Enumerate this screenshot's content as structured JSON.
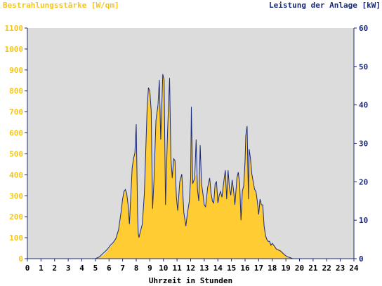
{
  "colors": {
    "irradiance": "#f5c518",
    "irradiance_fill": "#ffcc33",
    "power": "#1a2a7a",
    "plot_bg": "#dcdcdc",
    "axis": "#1a2a7a"
  },
  "chart_data": {
    "type": "area",
    "title_left": "Bestrahlungsstärke [W/qm]",
    "title_right": "Leistung der Anlage [kW]",
    "xlabel": "Uhrzeit in Stunden",
    "xlim": [
      0,
      24
    ],
    "ylim_left": [
      0,
      1100
    ],
    "ylim_right": [
      0,
      60
    ],
    "x_ticks": [
      "0",
      "1",
      "2",
      "3",
      "4",
      "5",
      "6",
      "7",
      "8",
      "9",
      "10",
      "11",
      "12",
      "13",
      "14",
      "15",
      "16",
      "17",
      "18",
      "19",
      "20",
      "21",
      "22",
      "23",
      "24"
    ],
    "y_left_ticks": [
      "0",
      "100",
      "200",
      "300",
      "400",
      "500",
      "600",
      "700",
      "800",
      "900",
      "1000",
      "1100"
    ],
    "y_right_ticks": [
      "0",
      "10",
      "20",
      "30",
      "40",
      "50",
      "60"
    ],
    "grid": false,
    "series": [
      {
        "name": "Bestrahlungsstärke [W/qm]",
        "axis": "left",
        "style": "filled-area",
        "x": [
          0,
          5,
          5.3,
          5.6,
          5.9,
          6.1,
          6.3,
          6.5,
          6.7,
          6.9,
          7.0,
          7.1,
          7.2,
          7.3,
          7.4,
          7.5,
          7.6,
          7.7,
          7.8,
          7.9,
          8.0,
          8.1,
          8.15,
          8.2,
          8.3,
          8.45,
          8.6,
          8.8,
          8.9,
          9.0,
          9.1,
          9.2,
          9.3,
          9.45,
          9.6,
          9.7,
          9.8,
          9.95,
          10.05,
          10.15,
          10.3,
          10.45,
          10.55,
          10.65,
          10.75,
          10.85,
          10.95,
          11.05,
          11.2,
          11.35,
          11.5,
          11.65,
          11.75,
          11.9,
          12.0,
          12.05,
          12.15,
          12.3,
          12.4,
          12.5,
          12.6,
          12.7,
          12.8,
          12.9,
          13.0,
          13.1,
          13.25,
          13.4,
          13.5,
          13.6,
          13.7,
          13.8,
          13.9,
          14.0,
          14.1,
          14.2,
          14.3,
          14.45,
          14.55,
          14.65,
          14.75,
          14.85,
          14.95,
          15.05,
          15.15,
          15.25,
          15.4,
          15.5,
          15.6,
          15.7,
          15.8,
          15.9,
          16.0,
          16.05,
          16.15,
          16.25,
          16.3,
          16.4,
          16.5,
          16.6,
          16.7,
          16.8,
          16.9,
          17.0,
          17.1,
          17.2,
          17.3,
          17.4,
          17.5,
          17.6,
          17.7,
          17.8,
          17.9,
          18.0,
          18.1,
          18.3,
          18.6,
          18.9,
          19.1,
          19.3,
          19.5,
          19.7,
          19.9,
          20.0,
          24
        ],
        "values": [
          0,
          0,
          5,
          15,
          35,
          55,
          70,
          90,
          130,
          230,
          290,
          310,
          330,
          310,
          260,
          150,
          300,
          430,
          470,
          500,
          640,
          200,
          110,
          95,
          120,
          150,
          300,
          720,
          810,
          800,
          700,
          220,
          360,
          660,
          720,
          730,
          560,
          880,
          850,
          250,
          600,
          860,
          470,
          380,
          470,
          460,
          290,
          220,
          360,
          400,
          210,
          150,
          200,
          270,
          380,
          700,
          350,
          380,
          400,
          320,
          270,
          540,
          350,
          310,
          250,
          240,
          340,
          380,
          310,
          270,
          260,
          350,
          370,
          260,
          300,
          320,
          290,
          370,
          420,
          280,
          420,
          340,
          300,
          370,
          330,
          250,
          380,
          410,
          350,
          180,
          320,
          350,
          470,
          580,
          600,
          280,
          520,
          470,
          400,
          360,
          330,
          320,
          270,
          210,
          280,
          250,
          250,
          150,
          110,
          90,
          80,
          80,
          60,
          70,
          65,
          45,
          40,
          20,
          10,
          5,
          0,
          0,
          0,
          0,
          0
        ]
      },
      {
        "name": "Leistung der Anlage [kW]",
        "axis": "right",
        "style": "line",
        "x": [
          0,
          5,
          5.3,
          5.6,
          5.9,
          6.1,
          6.3,
          6.5,
          6.7,
          6.9,
          7.0,
          7.1,
          7.2,
          7.3,
          7.4,
          7.5,
          7.6,
          7.7,
          7.8,
          7.9,
          8.0,
          8.1,
          8.15,
          8.2,
          8.3,
          8.45,
          8.6,
          8.8,
          8.9,
          9.0,
          9.1,
          9.2,
          9.3,
          9.45,
          9.6,
          9.7,
          9.8,
          9.95,
          10.05,
          10.15,
          10.3,
          10.45,
          10.55,
          10.65,
          10.75,
          10.85,
          10.95,
          11.05,
          11.2,
          11.35,
          11.5,
          11.65,
          11.75,
          11.9,
          12.0,
          12.05,
          12.15,
          12.3,
          12.4,
          12.5,
          12.6,
          12.7,
          12.8,
          12.9,
          13.0,
          13.1,
          13.25,
          13.4,
          13.5,
          13.6,
          13.7,
          13.8,
          13.9,
          14.0,
          14.1,
          14.2,
          14.3,
          14.45,
          14.55,
          14.65,
          14.75,
          14.85,
          14.95,
          15.05,
          15.15,
          15.25,
          15.4,
          15.5,
          15.6,
          15.7,
          15.8,
          15.9,
          16.0,
          16.05,
          16.15,
          16.25,
          16.3,
          16.4,
          16.5,
          16.6,
          16.7,
          16.8,
          16.9,
          17.0,
          17.1,
          17.2,
          17.3,
          17.4,
          17.5,
          17.6,
          17.7,
          17.8,
          17.9,
          18.0,
          18.1,
          18.3,
          18.6,
          18.9,
          19.1,
          19.3,
          19.5,
          19.7,
          19.9,
          20.0,
          24
        ],
        "values": [
          0,
          0,
          0.5,
          1.5,
          2.5,
          3.5,
          4.2,
          5.2,
          7.5,
          12.5,
          15.5,
          17.5,
          18,
          17,
          14,
          9,
          16.5,
          23.5,
          26,
          27.5,
          35,
          12,
          6.5,
          5.5,
          7,
          9,
          17,
          39,
          44.5,
          43.5,
          38.5,
          13,
          20,
          36,
          40,
          46.5,
          31,
          48,
          46.5,
          14,
          33,
          47,
          26,
          21,
          26,
          25.5,
          16,
          12.5,
          20,
          22,
          12,
          8.5,
          11.5,
          15,
          21,
          39.5,
          19.5,
          21,
          31,
          18,
          15,
          29.5,
          19.5,
          17,
          14,
          13.5,
          18.5,
          21,
          17,
          15,
          14.5,
          19.5,
          20,
          14.5,
          16.5,
          17.5,
          16,
          20.5,
          23,
          15.5,
          23,
          18.5,
          16.5,
          20.5,
          18,
          14,
          21,
          22.5,
          19.5,
          10,
          17.5,
          19,
          25.5,
          32,
          34.5,
          15.5,
          28.5,
          26,
          22,
          20,
          18,
          17.5,
          15,
          11.5,
          15.5,
          14,
          14,
          8.5,
          6,
          5,
          4.5,
          4.5,
          3.5,
          4,
          3.5,
          2.5,
          2,
          1,
          0.5,
          0.3,
          0,
          0,
          0,
          0,
          0
        ]
      }
    ]
  }
}
